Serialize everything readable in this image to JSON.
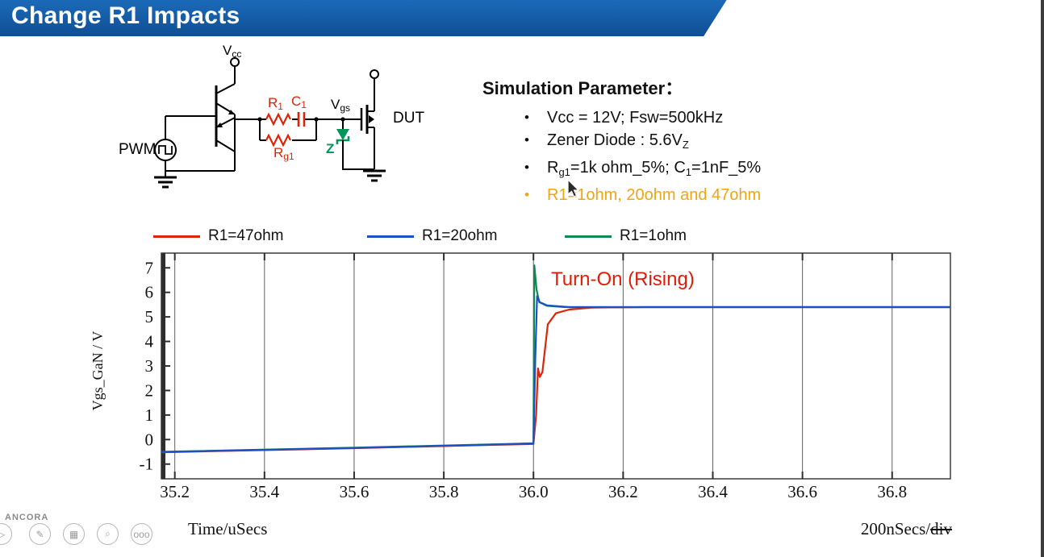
{
  "banner": {
    "title": "Change R1 Impacts",
    "color": "#1560a8",
    "text_color": "#ffffff"
  },
  "circuit": {
    "labels": {
      "vcc": {
        "main": "V",
        "sub": "cc"
      },
      "pwm": "PWM",
      "r1": {
        "main": "R",
        "sub": "1"
      },
      "c1": {
        "main": "C",
        "sub": "1"
      },
      "rg1": {
        "main": "R",
        "sub": "g1"
      },
      "vgs": {
        "main": "V",
        "sub": "gs"
      },
      "z": "Z",
      "dut": "DUT"
    },
    "colors": {
      "component": "#dd2408",
      "zener": "#00955a",
      "wire": "#000000"
    }
  },
  "params": {
    "title": "Simulation Parameter：",
    "bullets": [
      {
        "color": "#111111",
        "segments": [
          {
            "t": "Vcc = 12V; Fsw=500kHz"
          }
        ]
      },
      {
        "color": "#111111",
        "segments": [
          {
            "t": "Zener Diode : 5.6V"
          },
          {
            "t": "Z",
            "sub": true
          }
        ]
      },
      {
        "color": "#111111",
        "segments": [
          {
            "t": "R"
          },
          {
            "t": "g1",
            "sub": true
          },
          {
            "t": "=1k ohm_5%; C"
          },
          {
            "t": "1",
            "sub": true
          },
          {
            "t": "=1nF_5%"
          }
        ]
      },
      {
        "color": "#f0a512",
        "segments": [
          {
            "t": "R1=1ohm, 20ohm and 47ohm"
          }
        ]
      }
    ]
  },
  "legend": [
    {
      "label": "R1=47ohm",
      "color": "#dd2408"
    },
    {
      "label": "R1=20ohm",
      "color": "#1b50c8"
    },
    {
      "label": "R1=1ohm",
      "color": "#0e8a50"
    }
  ],
  "chart_data": {
    "type": "line",
    "annotation": "Turn-On (Rising)",
    "annotation_color": "#e01c08",
    "xlabel": "Time/uSecs",
    "ylabel": "Vgs_GaN / V",
    "x_range": [
      35.17,
      36.93
    ],
    "y_range": [
      -1.6,
      7.6
    ],
    "x_ticks": [
      "35.2",
      "35.4",
      "35.6",
      "35.8",
      "36.0",
      "36.2",
      "36.4",
      "36.6",
      "36.8"
    ],
    "y_ticks": [
      7,
      6,
      5,
      4,
      3,
      2,
      1,
      0,
      -1
    ],
    "grid": "vertical",
    "legend_position": "top",
    "series": [
      {
        "name": "R1=47ohm",
        "color": "#dd2408",
        "points": [
          [
            35.17,
            -0.52
          ],
          [
            35.6,
            -0.35
          ],
          [
            35.9,
            -0.22
          ],
          [
            36.0,
            -0.18
          ],
          [
            36.006,
            1.0
          ],
          [
            36.01,
            2.9
          ],
          [
            36.014,
            2.55
          ],
          [
            36.02,
            2.75
          ],
          [
            36.032,
            4.7
          ],
          [
            36.05,
            5.15
          ],
          [
            36.08,
            5.3
          ],
          [
            36.13,
            5.38
          ],
          [
            36.25,
            5.4
          ],
          [
            36.93,
            5.4
          ]
        ]
      },
      {
        "name": "R1=1ohm",
        "color": "#0e8a50",
        "points": [
          [
            35.17,
            -0.5
          ],
          [
            35.6,
            -0.33
          ],
          [
            35.9,
            -0.2
          ],
          [
            36.0,
            -0.15
          ],
          [
            36.002,
            7.1
          ],
          [
            36.007,
            6.1
          ],
          [
            36.013,
            5.6
          ],
          [
            36.03,
            5.45
          ],
          [
            36.07,
            5.4
          ],
          [
            36.93,
            5.4
          ]
        ]
      },
      {
        "name": "R1=20ohm",
        "color": "#1b50c8",
        "points": [
          [
            35.17,
            -0.51
          ],
          [
            35.6,
            -0.34
          ],
          [
            35.9,
            -0.21
          ],
          [
            36.0,
            -0.16
          ],
          [
            36.004,
            3.2
          ],
          [
            36.008,
            5.85
          ],
          [
            36.014,
            5.6
          ],
          [
            36.03,
            5.47
          ],
          [
            36.08,
            5.4
          ],
          [
            36.93,
            5.4
          ]
        ]
      }
    ]
  },
  "footer": {
    "x_axis_label": "Time/uSecs",
    "scale_prefix": "200nSecs/",
    "scale_struck": "div"
  },
  "watermark": {
    "brand": "ANCORA",
    "icons": [
      {
        "name": "play-icon",
        "glyph": "▷"
      },
      {
        "name": "pen-icon",
        "glyph": "✎"
      },
      {
        "name": "frames-icon",
        "glyph": "▦"
      },
      {
        "name": "magnifier-icon",
        "glyph": "⌕"
      },
      {
        "name": "ellipsis-icon",
        "glyph": "ooo"
      }
    ]
  }
}
